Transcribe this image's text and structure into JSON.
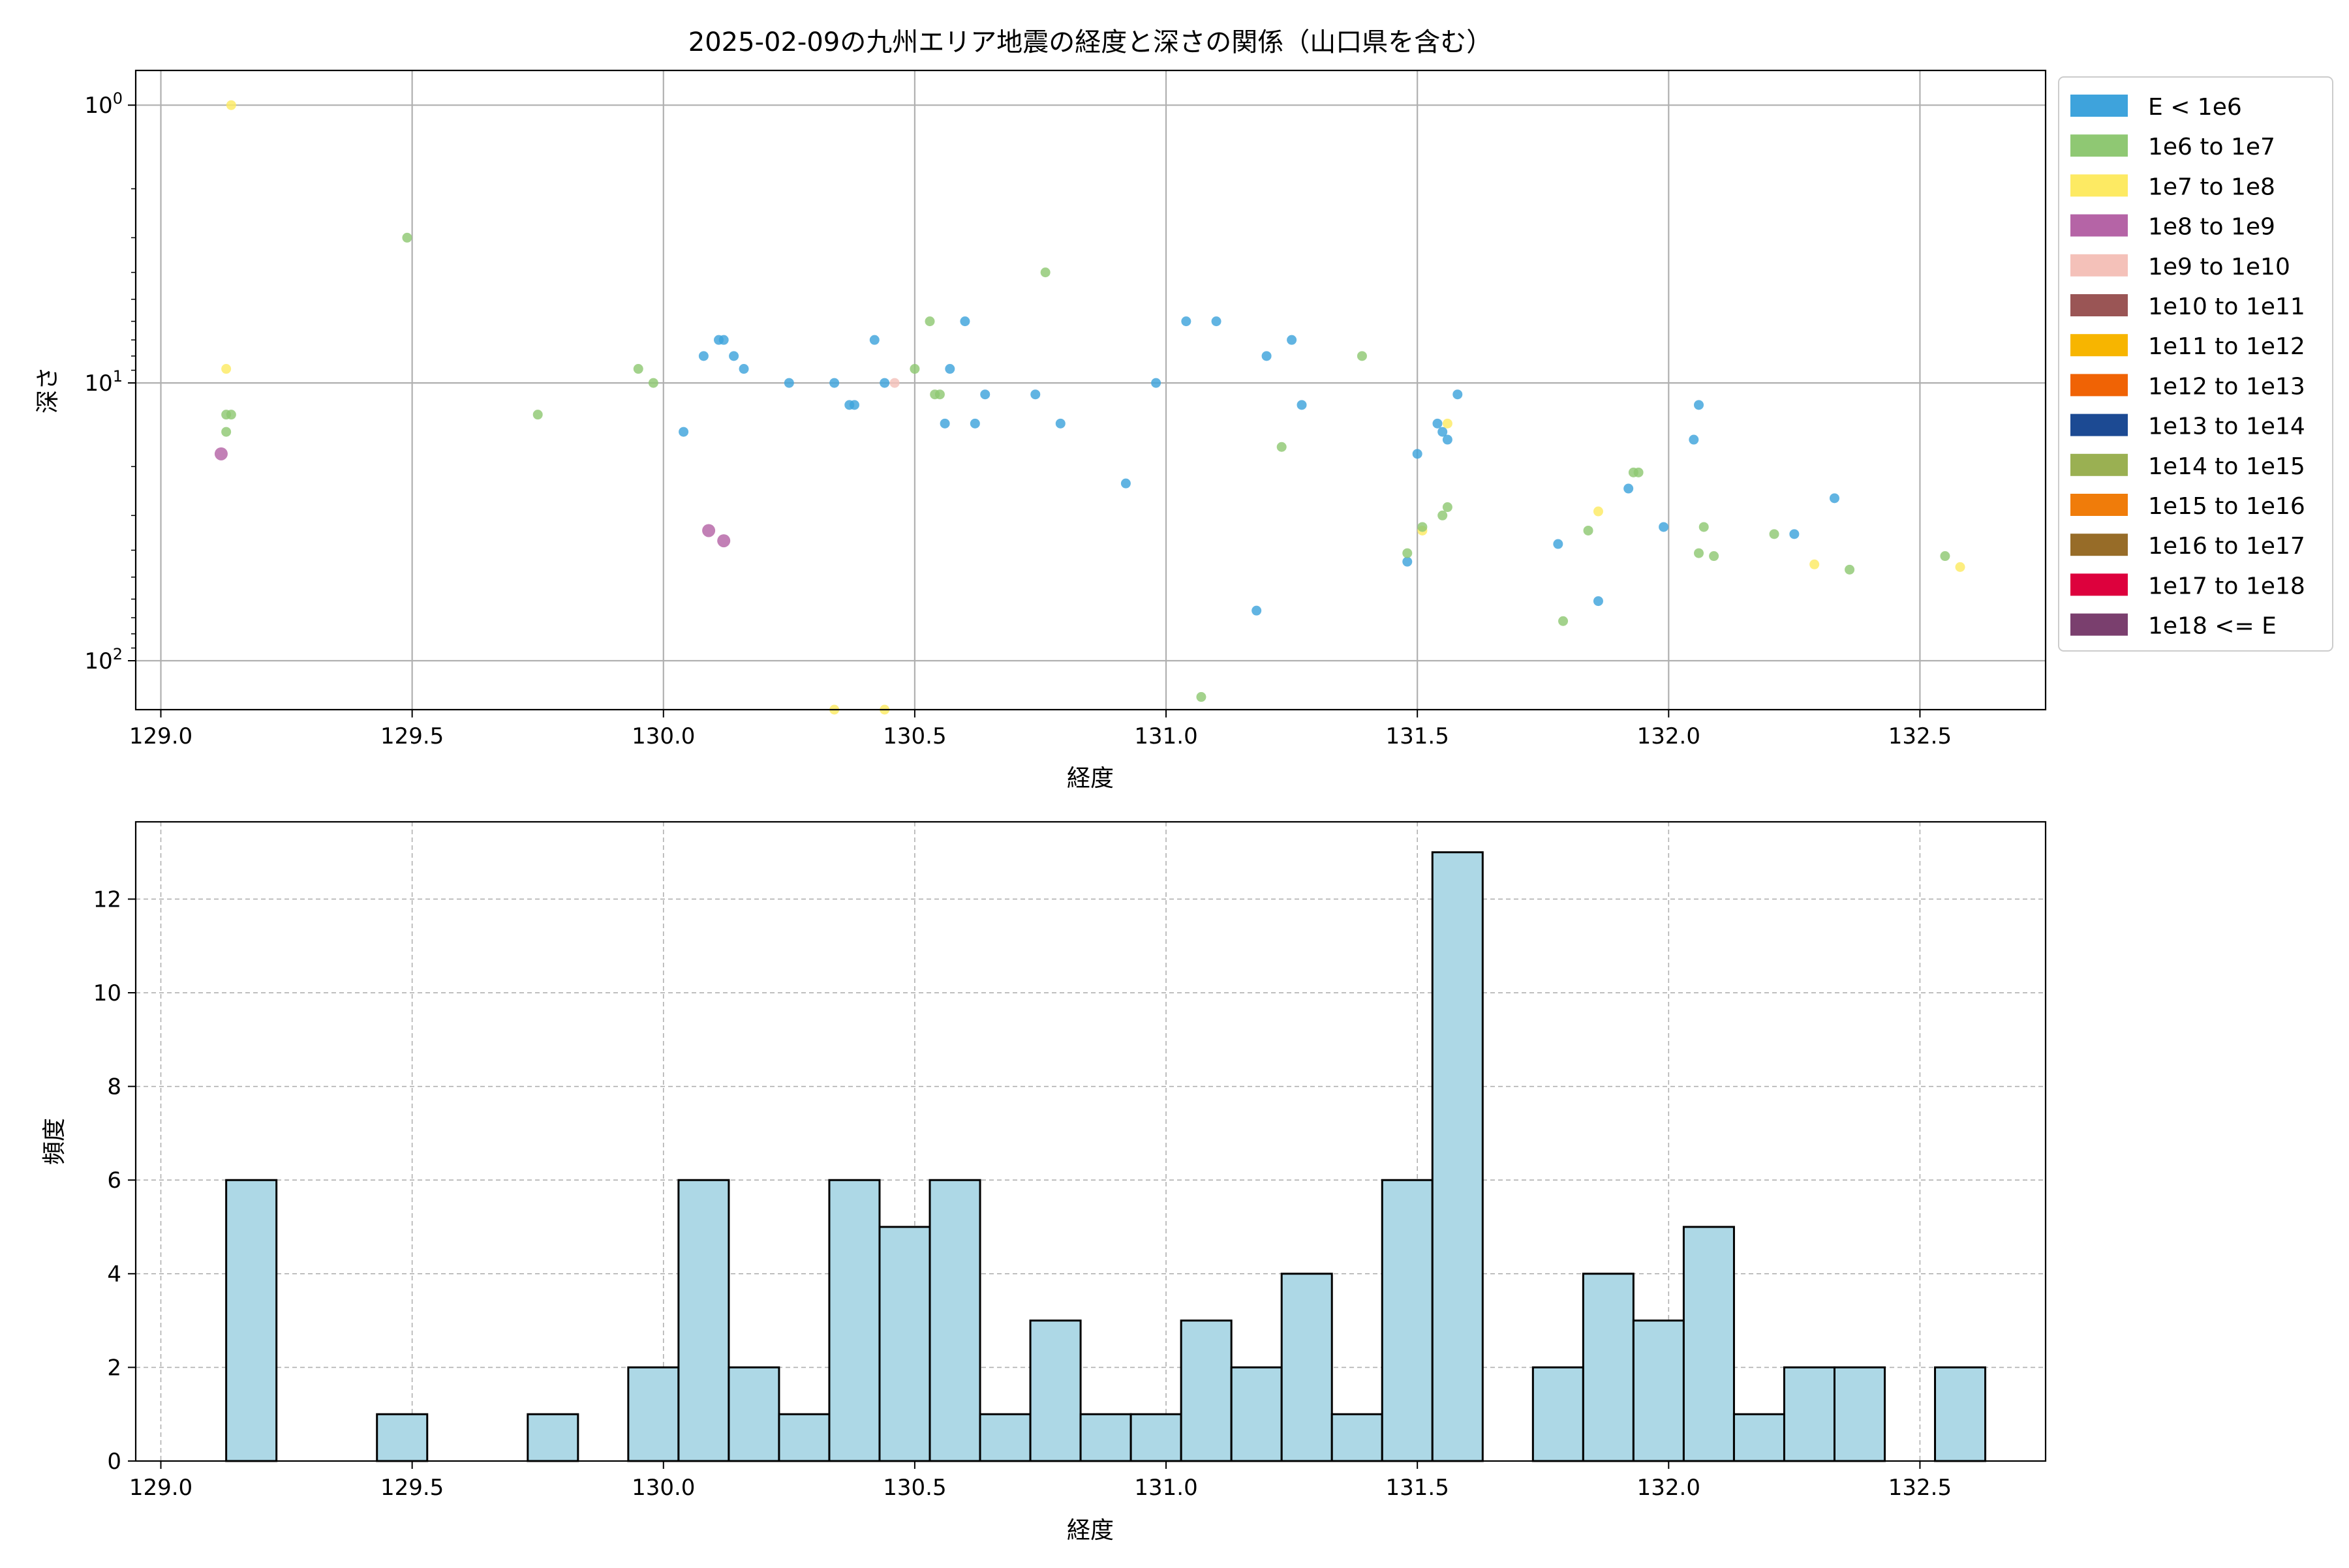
{
  "chart_data": [
    {
      "type": "scatter",
      "title": "2025-02-09の九州エリア地震の経度と深さの関係（山口県を含む）",
      "xlabel": "経度",
      "ylabel": "深さ",
      "xlim": [
        128.95,
        132.75
      ],
      "ylim": [
        150,
        0.75
      ],
      "yscale": "log",
      "y_inverted": true,
      "x_ticks": [
        "129.0",
        "129.5",
        "130.0",
        "130.5",
        "131.0",
        "131.5",
        "132.0",
        "132.5"
      ],
      "y_ticks": [
        {
          "base": "10",
          "exp": "0",
          "value": 1
        },
        {
          "base": "10",
          "exp": "1",
          "value": 10
        },
        {
          "base": "10",
          "exp": "2",
          "value": 100
        }
      ],
      "grid": true,
      "legend_position": "outside-right",
      "legend": [
        {
          "label": "E < 1e6",
          "color": "#3ea3dc"
        },
        {
          "label": "1e6 to 1e7",
          "color": "#8fc873"
        },
        {
          "label": "1e7 to 1e8",
          "color": "#fdea63"
        },
        {
          "label": "1e8 to 1e9",
          "color": "#b564a6"
        },
        {
          "label": "1e9 to 1e10",
          "color": "#f4c1b9"
        },
        {
          "label": "1e10 to 1e11",
          "color": "#9a5555"
        },
        {
          "label": "1e11 to 1e12",
          "color": "#f7b500"
        },
        {
          "label": "1e12 to 1e13",
          "color": "#f06305"
        },
        {
          "label": "1e13 to 1e14",
          "color": "#1c4a93"
        },
        {
          "label": "1e14 to 1e15",
          "color": "#9ab052"
        },
        {
          "label": "1e15 to 1e16",
          "color": "#f07c0a"
        },
        {
          "label": "1e16 to 1e17",
          "color": "#976c28"
        },
        {
          "label": "1e17 to 1e18",
          "color": "#dd013d"
        },
        {
          "label": "1e18 <= E",
          "color": "#7a3f6e"
        }
      ],
      "points": [
        {
          "x": 129.14,
          "y": 1.0,
          "c": 2
        },
        {
          "x": 129.13,
          "y": 8.9,
          "c": 2
        },
        {
          "x": 129.13,
          "y": 13.0,
          "c": 1
        },
        {
          "x": 129.14,
          "y": 13.0,
          "c": 1
        },
        {
          "x": 129.13,
          "y": 15.0,
          "c": 1
        },
        {
          "x": 129.12,
          "y": 18.0,
          "c": 3
        },
        {
          "x": 129.49,
          "y": 3.0,
          "c": 1
        },
        {
          "x": 129.75,
          "y": 13.0,
          "c": 1
        },
        {
          "x": 129.95,
          "y": 8.9,
          "c": 1
        },
        {
          "x": 129.98,
          "y": 10.0,
          "c": 1
        },
        {
          "x": 130.04,
          "y": 15.0,
          "c": 0
        },
        {
          "x": 130.08,
          "y": 8.0,
          "c": 0
        },
        {
          "x": 130.11,
          "y": 7.0,
          "c": 0
        },
        {
          "x": 130.12,
          "y": 7.0,
          "c": 0
        },
        {
          "x": 130.14,
          "y": 8.0,
          "c": 0
        },
        {
          "x": 130.16,
          "y": 8.9,
          "c": 0
        },
        {
          "x": 130.09,
          "y": 34.0,
          "c": 3
        },
        {
          "x": 130.12,
          "y": 37.0,
          "c": 3
        },
        {
          "x": 130.25,
          "y": 10.0,
          "c": 0
        },
        {
          "x": 130.34,
          "y": 10.0,
          "c": 0
        },
        {
          "x": 130.37,
          "y": 12.0,
          "c": 0
        },
        {
          "x": 130.38,
          "y": 12.0,
          "c": 0
        },
        {
          "x": 130.42,
          "y": 7.0,
          "c": 0
        },
        {
          "x": 130.44,
          "y": 10.0,
          "c": 0
        },
        {
          "x": 130.46,
          "y": 10.0,
          "c": 4
        },
        {
          "x": 130.34,
          "y": 150.0,
          "c": 2
        },
        {
          "x": 130.44,
          "y": 150.0,
          "c": 2
        },
        {
          "x": 130.5,
          "y": 8.9,
          "c": 1
        },
        {
          "x": 130.53,
          "y": 6.0,
          "c": 1
        },
        {
          "x": 130.54,
          "y": 11.0,
          "c": 1
        },
        {
          "x": 130.55,
          "y": 11.0,
          "c": 1
        },
        {
          "x": 130.56,
          "y": 14.0,
          "c": 0
        },
        {
          "x": 130.57,
          "y": 8.9,
          "c": 0
        },
        {
          "x": 130.6,
          "y": 6.0,
          "c": 0
        },
        {
          "x": 130.62,
          "y": 14.0,
          "c": 0
        },
        {
          "x": 130.64,
          "y": 11.0,
          "c": 0
        },
        {
          "x": 130.74,
          "y": 11.0,
          "c": 0
        },
        {
          "x": 130.79,
          "y": 14.0,
          "c": 0
        },
        {
          "x": 130.76,
          "y": 4.0,
          "c": 1
        },
        {
          "x": 130.92,
          "y": 23.0,
          "c": 0
        },
        {
          "x": 130.98,
          "y": 10.0,
          "c": 0
        },
        {
          "x": 131.04,
          "y": 6.0,
          "c": 0
        },
        {
          "x": 131.1,
          "y": 6.0,
          "c": 0
        },
        {
          "x": 131.18,
          "y": 66.0,
          "c": 0
        },
        {
          "x": 131.07,
          "y": 135.0,
          "c": 1
        },
        {
          "x": 131.2,
          "y": 8.0,
          "c": 0
        },
        {
          "x": 131.23,
          "y": 17.0,
          "c": 1
        },
        {
          "x": 131.25,
          "y": 7.0,
          "c": 0
        },
        {
          "x": 131.27,
          "y": 12.0,
          "c": 0
        },
        {
          "x": 131.39,
          "y": 8.0,
          "c": 1
        },
        {
          "x": 131.48,
          "y": 44.0,
          "c": 0
        },
        {
          "x": 131.48,
          "y": 41.0,
          "c": 1
        },
        {
          "x": 131.5,
          "y": 18.0,
          "c": 0
        },
        {
          "x": 131.51,
          "y": 34.0,
          "c": 2
        },
        {
          "x": 131.51,
          "y": 33.0,
          "c": 1
        },
        {
          "x": 131.54,
          "y": 14.0,
          "c": 0
        },
        {
          "x": 131.55,
          "y": 15.0,
          "c": 0
        },
        {
          "x": 131.56,
          "y": 14.0,
          "c": 2
        },
        {
          "x": 131.55,
          "y": 30.0,
          "c": 1
        },
        {
          "x": 131.56,
          "y": 28.0,
          "c": 1
        },
        {
          "x": 131.56,
          "y": 16.0,
          "c": 0
        },
        {
          "x": 131.58,
          "y": 11.0,
          "c": 0
        },
        {
          "x": 131.78,
          "y": 38.0,
          "c": 0
        },
        {
          "x": 131.79,
          "y": 72.0,
          "c": 1
        },
        {
          "x": 131.84,
          "y": 34.0,
          "c": 1
        },
        {
          "x": 131.86,
          "y": 29.0,
          "c": 2
        },
        {
          "x": 131.86,
          "y": 61.0,
          "c": 0
        },
        {
          "x": 131.92,
          "y": 24.0,
          "c": 0
        },
        {
          "x": 131.93,
          "y": 21.0,
          "c": 1
        },
        {
          "x": 131.94,
          "y": 21.0,
          "c": 1
        },
        {
          "x": 131.99,
          "y": 33.0,
          "c": 0
        },
        {
          "x": 132.05,
          "y": 16.0,
          "c": 0
        },
        {
          "x": 132.06,
          "y": 12.0,
          "c": 0
        },
        {
          "x": 132.06,
          "y": 41.0,
          "c": 1
        },
        {
          "x": 132.07,
          "y": 33.0,
          "c": 1
        },
        {
          "x": 132.09,
          "y": 42.0,
          "c": 1
        },
        {
          "x": 132.21,
          "y": 35.0,
          "c": 1
        },
        {
          "x": 132.25,
          "y": 35.0,
          "c": 0
        },
        {
          "x": 132.29,
          "y": 45.0,
          "c": 2
        },
        {
          "x": 132.33,
          "y": 26.0,
          "c": 0
        },
        {
          "x": 132.36,
          "y": 47.0,
          "c": 1
        },
        {
          "x": 132.55,
          "y": 42.0,
          "c": 1
        },
        {
          "x": 132.58,
          "y": 46.0,
          "c": 2
        }
      ]
    },
    {
      "type": "bar",
      "xlabel": "経度",
      "ylabel": "頻度",
      "xlim": [
        128.95,
        132.75
      ],
      "ylim": [
        0,
        13.65
      ],
      "x_ticks": [
        "129.0",
        "129.5",
        "130.0",
        "130.5",
        "131.0",
        "131.5",
        "132.0",
        "132.5"
      ],
      "y_ticks": [
        "0",
        "2",
        "4",
        "6",
        "8",
        "10",
        "12"
      ],
      "grid": true,
      "bar_color": "#add8e6",
      "edge_color": "#000000",
      "bin_start": 129.13,
      "bin_width": 0.1,
      "counts": [
        6,
        0,
        0,
        1,
        0,
        0,
        1,
        0,
        2,
        6,
        2,
        1,
        6,
        5,
        6,
        1,
        3,
        1,
        1,
        3,
        2,
        4,
        1,
        6,
        13,
        0,
        2,
        4,
        3,
        5,
        1,
        2,
        2,
        0,
        2
      ]
    }
  ]
}
